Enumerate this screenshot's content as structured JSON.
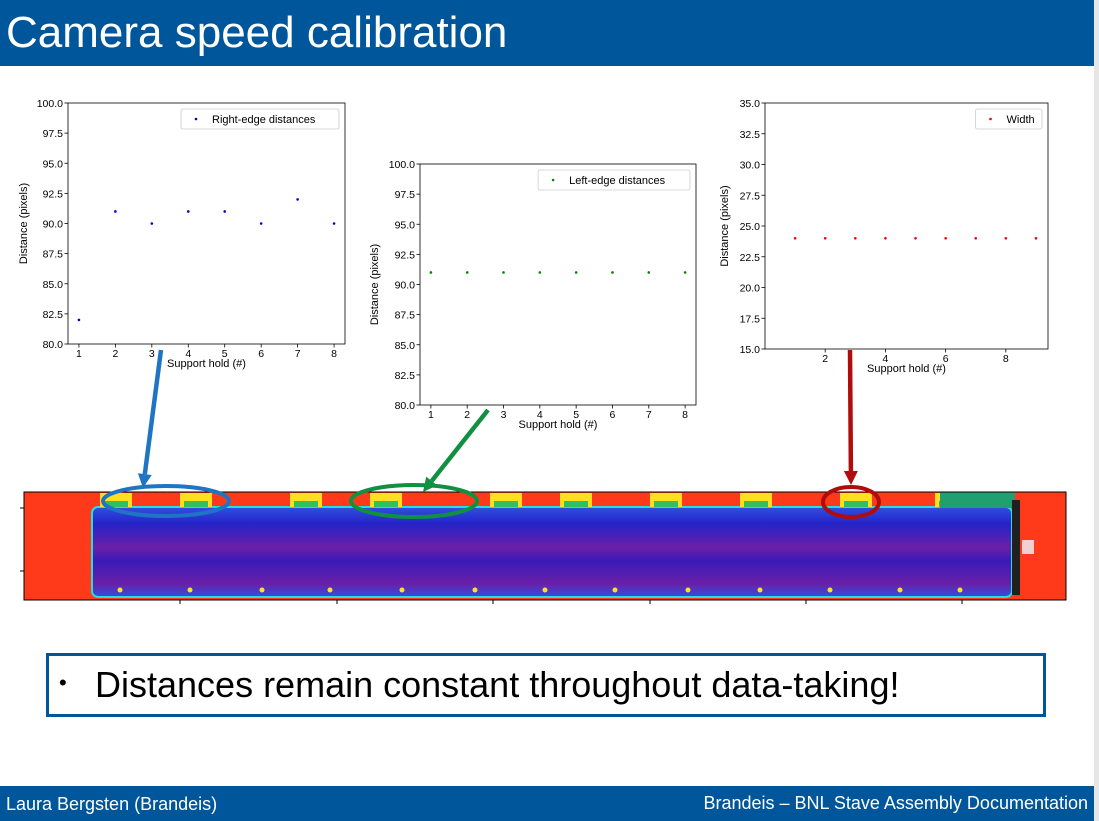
{
  "slide": {
    "title": "Camera speed calibration",
    "bullet": "Distances remain constant throughout data-taking!",
    "footer_left": "Laura Bergsten (Brandeis)",
    "footer_right": "Brandeis – BNL Stave Assembly Documentation",
    "accent_color": "#00569a"
  },
  "chart_data": [
    {
      "type": "scatter",
      "xlabel": "Support hold (#)",
      "ylabel": "Distance (pixels)",
      "xlim": [
        0.7,
        8.3
      ],
      "ylim": [
        80.0,
        100.0
      ],
      "xticks": [
        1,
        2,
        3,
        4,
        5,
        6,
        7,
        8
      ],
      "yticks": [
        80.0,
        82.5,
        85.0,
        87.5,
        90.0,
        92.5,
        95.0,
        97.5,
        100.0
      ],
      "legend_position": "top-right",
      "series": [
        {
          "name": "Right-edge distances",
          "color": "#0000cc",
          "x": [
            1,
            2,
            3,
            4,
            5,
            6,
            7,
            8
          ],
          "y": [
            82,
            91,
            90,
            91,
            91,
            90,
            92,
            90
          ]
        }
      ]
    },
    {
      "type": "scatter",
      "xlabel": "Support hold (#)",
      "ylabel": "Distance (pixels)",
      "xlim": [
        0.7,
        8.3
      ],
      "ylim": [
        80.0,
        100.0
      ],
      "xticks": [
        1,
        2,
        3,
        4,
        5,
        6,
        7,
        8
      ],
      "yticks": [
        80.0,
        82.5,
        85.0,
        87.5,
        90.0,
        92.5,
        95.0,
        97.5,
        100.0
      ],
      "legend_position": "top-right",
      "series": [
        {
          "name": "Left-edge distances",
          "color": "#008800",
          "x": [
            1,
            2,
            3,
            4,
            5,
            6,
            7,
            8
          ],
          "y": [
            91,
            91,
            91,
            91,
            91,
            91,
            91,
            91
          ]
        }
      ]
    },
    {
      "type": "scatter",
      "xlabel": "Support hold (#)",
      "ylabel": "Distance (pixels)",
      "xlim": [
        0,
        9.4
      ],
      "ylim": [
        15.0,
        35.0
      ],
      "xticks": [
        2,
        4,
        6,
        8
      ],
      "yticks": [
        15.0,
        17.5,
        20.0,
        22.5,
        25.0,
        27.5,
        30.0,
        32.5,
        35.0
      ],
      "legend_position": "top-right",
      "series": [
        {
          "name": "Width",
          "color": "#ee0000",
          "x": [
            1,
            2,
            3,
            4,
            5,
            6,
            7,
            8,
            9
          ],
          "y": [
            24,
            24,
            24,
            24,
            24,
            24,
            24,
            24,
            24
          ]
        }
      ]
    }
  ],
  "heatmap": {
    "colors": {
      "hot": "#ff3a1a",
      "cold": "#2424c8",
      "deep": "#6a1fa8",
      "mid": "#ffe020",
      "green": "#30c060"
    },
    "arrow_colors": [
      "#1f74c4",
      "#109040",
      "#b00c0c"
    ]
  }
}
